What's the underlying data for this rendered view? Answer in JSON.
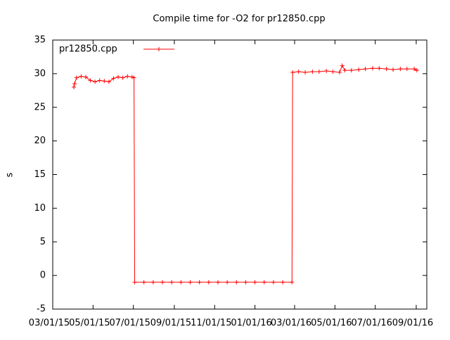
{
  "chart_data": {
    "type": "line",
    "title": "Compile time for -O2 for pr12850.cpp",
    "ylabel": "s",
    "x": [
      "2015-04-02",
      "2015-04-03",
      "2015-04-06",
      "2015-04-13",
      "2015-04-20",
      "2015-04-27",
      "2015-05-04",
      "2015-05-11",
      "2015-05-18",
      "2015-05-25",
      "2015-06-01",
      "2015-06-08",
      "2015-06-15",
      "2015-06-22",
      "2015-06-29",
      "2015-07-02",
      "2015-07-03",
      "2015-07-17",
      "2015-07-31",
      "2015-08-14",
      "2015-08-28",
      "2015-09-11",
      "2015-09-25",
      "2015-10-09",
      "2015-10-23",
      "2015-11-06",
      "2015-11-20",
      "2015-12-04",
      "2015-12-18",
      "2016-01-01",
      "2016-01-15",
      "2016-01-29",
      "2016-02-12",
      "2016-02-26",
      "2016-02-27",
      "2016-03-07",
      "2016-03-17",
      "2016-03-28",
      "2016-04-07",
      "2016-04-18",
      "2016-04-28",
      "2016-05-08",
      "2016-05-12",
      "2016-05-16",
      "2016-05-26",
      "2016-06-06",
      "2016-06-16",
      "2016-06-27",
      "2016-07-07",
      "2016-07-18",
      "2016-07-28",
      "2016-08-08",
      "2016-08-18",
      "2016-08-29",
      "2016-09-02"
    ],
    "series": [
      {
        "name": "pr12850.cpp",
        "color": "#ff0000",
        "values": [
          28.0,
          28.5,
          29.4,
          29.6,
          29.5,
          29.0,
          28.8,
          29.0,
          28.9,
          28.8,
          29.3,
          29.5,
          29.4,
          29.6,
          29.5,
          29.4,
          -1,
          -1,
          -1,
          -1,
          -1,
          -1,
          -1,
          -1,
          -1,
          -1,
          -1,
          -1,
          -1,
          -1,
          -1,
          -1,
          -1,
          -1,
          30.2,
          30.3,
          30.2,
          30.3,
          30.3,
          30.4,
          30.3,
          30.2,
          31.2,
          30.5,
          30.5,
          30.6,
          30.7,
          30.8,
          30.8,
          30.7,
          30.6,
          30.7,
          30.7,
          30.7,
          30.5
        ]
      }
    ],
    "xlim": [
      "2015-03-01",
      "2016-09-17"
    ],
    "xticks": [
      {
        "value": "2015-03-01",
        "label": "03/01/15"
      },
      {
        "value": "2015-05-01",
        "label": "05/01/15"
      },
      {
        "value": "2015-07-01",
        "label": "07/01/15"
      },
      {
        "value": "2015-09-01",
        "label": "09/01/15"
      },
      {
        "value": "2015-11-01",
        "label": "11/01/15"
      },
      {
        "value": "2016-01-01",
        "label": "01/01/16"
      },
      {
        "value": "2016-03-01",
        "label": "03/01/16"
      },
      {
        "value": "2016-05-01",
        "label": "05/01/16"
      },
      {
        "value": "2016-07-01",
        "label": "07/01/16"
      },
      {
        "value": "2016-09-01",
        "label": "09/01/16"
      }
    ],
    "ylim": [
      -5,
      35
    ],
    "yticks": [
      -5,
      0,
      5,
      10,
      15,
      20,
      25,
      30,
      35
    ],
    "legend": "top-left"
  }
}
